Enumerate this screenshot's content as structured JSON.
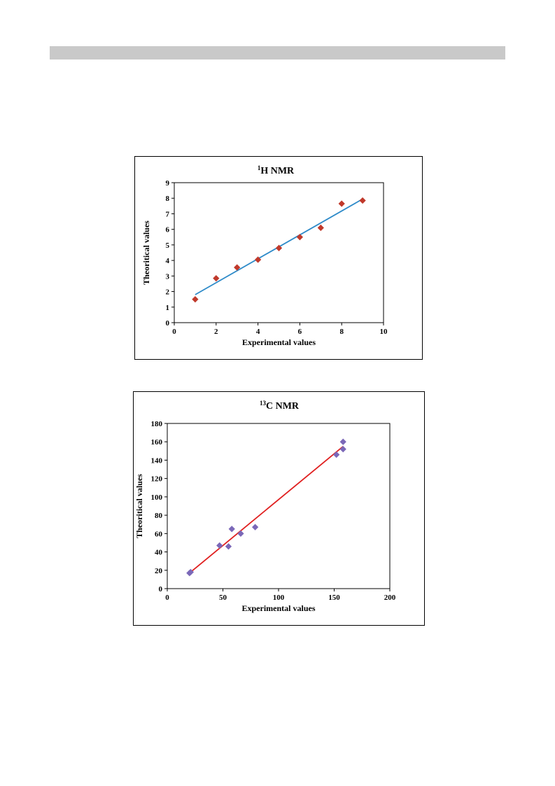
{
  "chart_data": [
    {
      "type": "scatter",
      "title_sup": "1",
      "title": "H NMR",
      "xlabel": "Experimental values",
      "ylabel": "Theoritical values",
      "xlim": [
        0,
        10
      ],
      "ylim": [
        0,
        9
      ],
      "xticks": [
        0,
        2,
        4,
        6,
        8,
        10
      ],
      "yticks": [
        0,
        1,
        2,
        3,
        4,
        5,
        6,
        7,
        8,
        9
      ],
      "points": [
        {
          "x": 1,
          "y": 1.5
        },
        {
          "x": 2,
          "y": 2.85
        },
        {
          "x": 3,
          "y": 3.55
        },
        {
          "x": 4,
          "y": 4.05
        },
        {
          "x": 5,
          "y": 4.8
        },
        {
          "x": 6,
          "y": 5.5
        },
        {
          "x": 7,
          "y": 6.1
        },
        {
          "x": 8,
          "y": 7.65
        },
        {
          "x": 9,
          "y": 7.85
        }
      ],
      "trendline": {
        "x": [
          1,
          9
        ],
        "y": [
          1.8,
          7.95
        ]
      },
      "marker_color": "#c0392b",
      "line_color": "#2e8bc9",
      "grid": false
    },
    {
      "type": "scatter",
      "title_sup": "13",
      "title": "C  NMR",
      "xlabel": "Experimental values",
      "ylabel": "Theoritical values",
      "xlim": [
        0,
        200
      ],
      "ylim": [
        0,
        180
      ],
      "xticks": [
        0,
        50,
        100,
        150,
        200
      ],
      "yticks": [
        0,
        20,
        40,
        60,
        80,
        100,
        120,
        140,
        160,
        180
      ],
      "points": [
        {
          "x": 20,
          "y": 17
        },
        {
          "x": 21,
          "y": 18
        },
        {
          "x": 47,
          "y": 47
        },
        {
          "x": 55,
          "y": 46
        },
        {
          "x": 58,
          "y": 65
        },
        {
          "x": 66,
          "y": 60
        },
        {
          "x": 79,
          "y": 67
        },
        {
          "x": 152,
          "y": 146
        },
        {
          "x": 158,
          "y": 152
        },
        {
          "x": 158,
          "y": 160
        }
      ],
      "trendline": {
        "x": [
          20,
          158
        ],
        "y": [
          17,
          155
        ]
      },
      "marker_color": "#7b68b8",
      "line_color": "#e02020",
      "grid": false
    }
  ]
}
